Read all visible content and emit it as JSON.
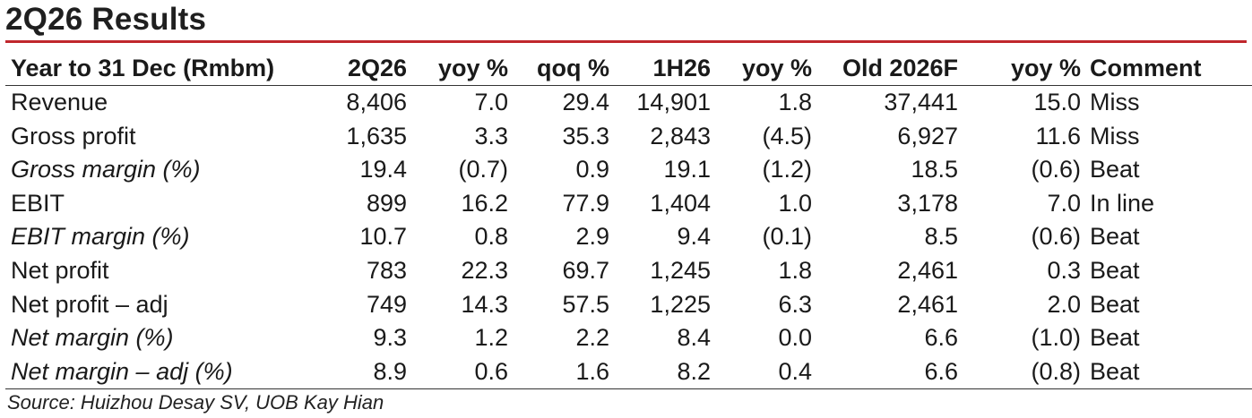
{
  "title": "2Q26 Results",
  "columns": [
    "Year to 31 Dec (Rmbm)",
    "2Q26",
    "yoy %",
    "qoq %",
    "1H26",
    "yoy %",
    "Old 2026F",
    "yoy %",
    "Comment"
  ],
  "rows": [
    {
      "label": "Revenue",
      "italic": false,
      "values": [
        "8,406",
        "7.0",
        "29.4",
        "14,901",
        "1.8",
        "37,441",
        "15.0"
      ],
      "comment": "Miss"
    },
    {
      "label": "Gross profit",
      "italic": false,
      "values": [
        "1,635",
        "3.3",
        "35.3",
        "2,843",
        "(4.5)",
        "6,927",
        "11.6"
      ],
      "comment": "Miss"
    },
    {
      "label": "Gross margin (%)",
      "italic": true,
      "values": [
        "19.4",
        "(0.7)",
        "0.9",
        "19.1",
        "(1.2)",
        "18.5",
        "(0.6)"
      ],
      "comment": "Beat"
    },
    {
      "label": "EBIT",
      "italic": false,
      "values": [
        "899",
        "16.2",
        "77.9",
        "1,404",
        "1.0",
        "3,178",
        "7.0"
      ],
      "comment": "In line"
    },
    {
      "label": "EBIT margin (%)",
      "italic": true,
      "values": [
        "10.7",
        "0.8",
        "2.9",
        "9.4",
        "(0.1)",
        "8.5",
        "(0.6)"
      ],
      "comment": "Beat"
    },
    {
      "label": "Net profit",
      "italic": false,
      "values": [
        "783",
        "22.3",
        "69.7",
        "1,245",
        "1.8",
        "2,461",
        "0.3"
      ],
      "comment": "Beat"
    },
    {
      "label": "Net profit – adj",
      "italic": false,
      "values": [
        "749",
        "14.3",
        "57.5",
        "1,225",
        "6.3",
        "2,461",
        "2.0"
      ],
      "comment": "Beat"
    },
    {
      "label": "Net margin (%)",
      "italic": true,
      "values": [
        "9.3",
        "1.2",
        "2.2",
        "8.4",
        "0.0",
        "6.6",
        "(1.0)"
      ],
      "comment": "Beat"
    },
    {
      "label": "Net margin – adj (%)",
      "italic": true,
      "values": [
        "8.9",
        "0.6",
        "1.6",
        "8.2",
        "0.4",
        "6.6",
        "(0.8)"
      ],
      "comment": "Beat"
    }
  ],
  "source": "Source: Huizhou Desay SV, UOB Kay Hian",
  "colors": {
    "accent_rule": "#c0272d",
    "text": "#1a1a1a"
  }
}
